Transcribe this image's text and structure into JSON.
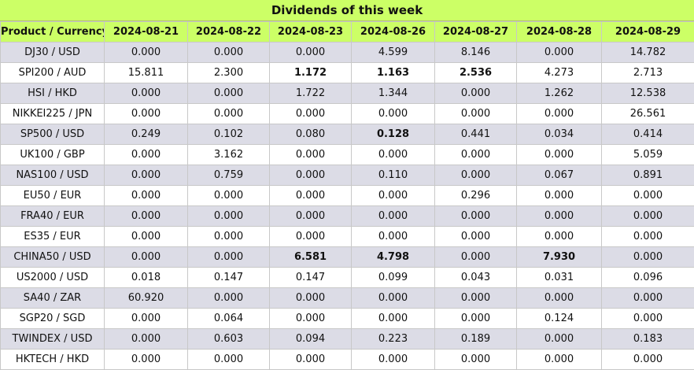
{
  "title": "Dividends of this week",
  "columns": [
    "Product / Currency",
    "2024-08-21",
    "2024-08-22",
    "2024-08-23",
    "2024-08-26",
    "2024-08-27",
    "2024-08-28",
    "2024-08-29"
  ],
  "rows": [
    {
      "product": "DJ30 / USD",
      "values": [
        "0.000",
        "0.000",
        "0.000",
        "4.599",
        "8.146",
        "0.000",
        "14.782"
      ],
      "bold": []
    },
    {
      "product": "SPI200 / AUD",
      "values": [
        "15.811",
        "2.300",
        "1.172",
        "1.163",
        "2.536",
        "4.273",
        "2.713"
      ],
      "bold": [
        2,
        3,
        4
      ]
    },
    {
      "product": "HSI / HKD",
      "values": [
        "0.000",
        "0.000",
        "1.722",
        "1.344",
        "0.000",
        "1.262",
        "12.538"
      ],
      "bold": []
    },
    {
      "product": "NIKKEI225 / JPN",
      "values": [
        "0.000",
        "0.000",
        "0.000",
        "0.000",
        "0.000",
        "0.000",
        "26.561"
      ],
      "bold": []
    },
    {
      "product": "SP500 / USD",
      "values": [
        "0.249",
        "0.102",
        "0.080",
        "0.128",
        "0.441",
        "0.034",
        "0.414"
      ],
      "bold": [
        3
      ]
    },
    {
      "product": "UK100 / GBP",
      "values": [
        "0.000",
        "3.162",
        "0.000",
        "0.000",
        "0.000",
        "0.000",
        "5.059"
      ],
      "bold": []
    },
    {
      "product": "NAS100 / USD",
      "values": [
        "0.000",
        "0.759",
        "0.000",
        "0.110",
        "0.000",
        "0.067",
        "0.891"
      ],
      "bold": []
    },
    {
      "product": "EU50 / EUR",
      "values": [
        "0.000",
        "0.000",
        "0.000",
        "0.000",
        "0.296",
        "0.000",
        "0.000"
      ],
      "bold": []
    },
    {
      "product": "FRA40 / EUR",
      "values": [
        "0.000",
        "0.000",
        "0.000",
        "0.000",
        "0.000",
        "0.000",
        "0.000"
      ],
      "bold": []
    },
    {
      "product": "ES35 / EUR",
      "values": [
        "0.000",
        "0.000",
        "0.000",
        "0.000",
        "0.000",
        "0.000",
        "0.000"
      ],
      "bold": []
    },
    {
      "product": "CHINA50 / USD",
      "values": [
        "0.000",
        "0.000",
        "6.581",
        "4.798",
        "0.000",
        "7.930",
        "0.000"
      ],
      "bold": [
        2,
        3,
        5
      ]
    },
    {
      "product": "US2000 / USD",
      "values": [
        "0.018",
        "0.147",
        "0.147",
        "0.099",
        "0.043",
        "0.031",
        "0.096"
      ],
      "bold": []
    },
    {
      "product": "SA40 / ZAR",
      "values": [
        "60.920",
        "0.000",
        "0.000",
        "0.000",
        "0.000",
        "0.000",
        "0.000"
      ],
      "bold": []
    },
    {
      "product": "SGP20 / SGD",
      "values": [
        "0.000",
        "0.064",
        "0.000",
        "0.000",
        "0.000",
        "0.124",
        "0.000"
      ],
      "bold": []
    },
    {
      "product": "TWINDEX / USD",
      "values": [
        "0.000",
        "0.603",
        "0.094",
        "0.223",
        "0.189",
        "0.000",
        "0.183"
      ],
      "bold": []
    },
    {
      "product": "HKTECH / HKD",
      "values": [
        "0.000",
        "0.000",
        "0.000",
        "0.000",
        "0.000",
        "0.000",
        "0.000"
      ],
      "bold": []
    }
  ]
}
